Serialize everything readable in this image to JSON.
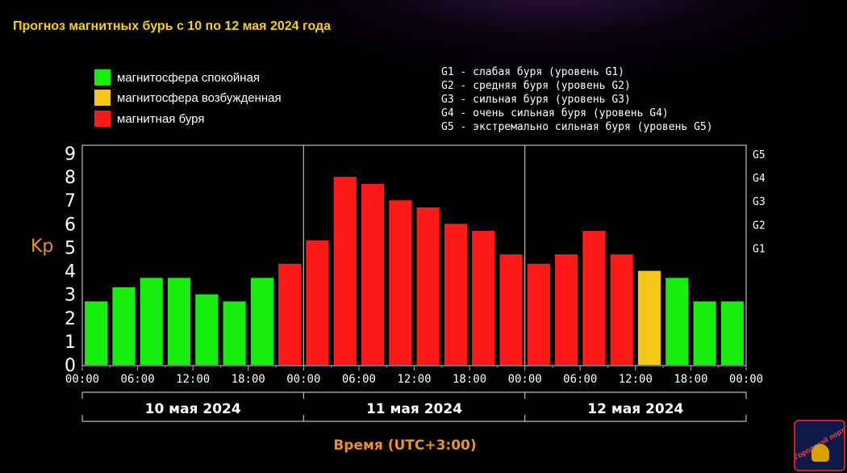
{
  "title": "Прогноз магнитных бурь с 10 по 12 мая 2024 года",
  "legend": [
    {
      "label": "магнитосфера спокойная",
      "color": "#17ee0e"
    },
    {
      "label": "магнитосфера возбужденная",
      "color": "#f5c518"
    },
    {
      "label": "магнитная буря",
      "color": "#ff1a1a"
    }
  ],
  "g_levels": [
    "G1 - слабая буря (уровень G1)",
    "G2 - средняя буря (уровень G2)",
    "G3 - сильная буря (уровень G3)",
    "G4 - очень сильная буря (уровень G4)",
    "G5 - экстремально сильная буря (уровень G5)"
  ],
  "logo_text": "Городской портал",
  "chart_data": {
    "type": "bar",
    "ylabel": "Kp",
    "xlabel": "Время (UTC+3:00)",
    "ylim": [
      0,
      9
    ],
    "y_ticks": [
      "0",
      "1",
      "2",
      "3",
      "4",
      "5",
      "6",
      "7",
      "8",
      "9"
    ],
    "right_ticks": [
      {
        "label": "G1",
        "kp": 5
      },
      {
        "label": "G2",
        "kp": 6
      },
      {
        "label": "G3",
        "kp": 7
      },
      {
        "label": "G4",
        "kp": 8
      },
      {
        "label": "G5",
        "kp": 9
      }
    ],
    "x_tick_labels": [
      "00:00",
      "06:00",
      "12:00",
      "18:00",
      "00:00",
      "06:00",
      "12:00",
      "18:00",
      "00:00",
      "06:00",
      "12:00",
      "18:00",
      "00:00"
    ],
    "days": [
      "10 мая 2024",
      "11 мая 2024",
      "12 мая 2024"
    ],
    "values": [
      2.7,
      3.3,
      3.7,
      3.7,
      3.0,
      2.7,
      3.7,
      4.3,
      5.3,
      8.0,
      7.7,
      7.0,
      6.7,
      6.0,
      5.7,
      4.7,
      4.3,
      4.7,
      5.7,
      4.7,
      4.0,
      3.7,
      2.7,
      2.7
    ],
    "status": [
      "quiet",
      "quiet",
      "quiet",
      "quiet",
      "quiet",
      "quiet",
      "quiet",
      "storm",
      "storm",
      "storm",
      "storm",
      "storm",
      "storm",
      "storm",
      "storm",
      "storm",
      "storm",
      "storm",
      "storm",
      "storm",
      "active",
      "quiet",
      "quiet",
      "quiet"
    ],
    "status_colors": {
      "quiet": "#17ee0e",
      "active": "#f5c518",
      "storm": "#ff1a1a"
    },
    "grid": false
  }
}
